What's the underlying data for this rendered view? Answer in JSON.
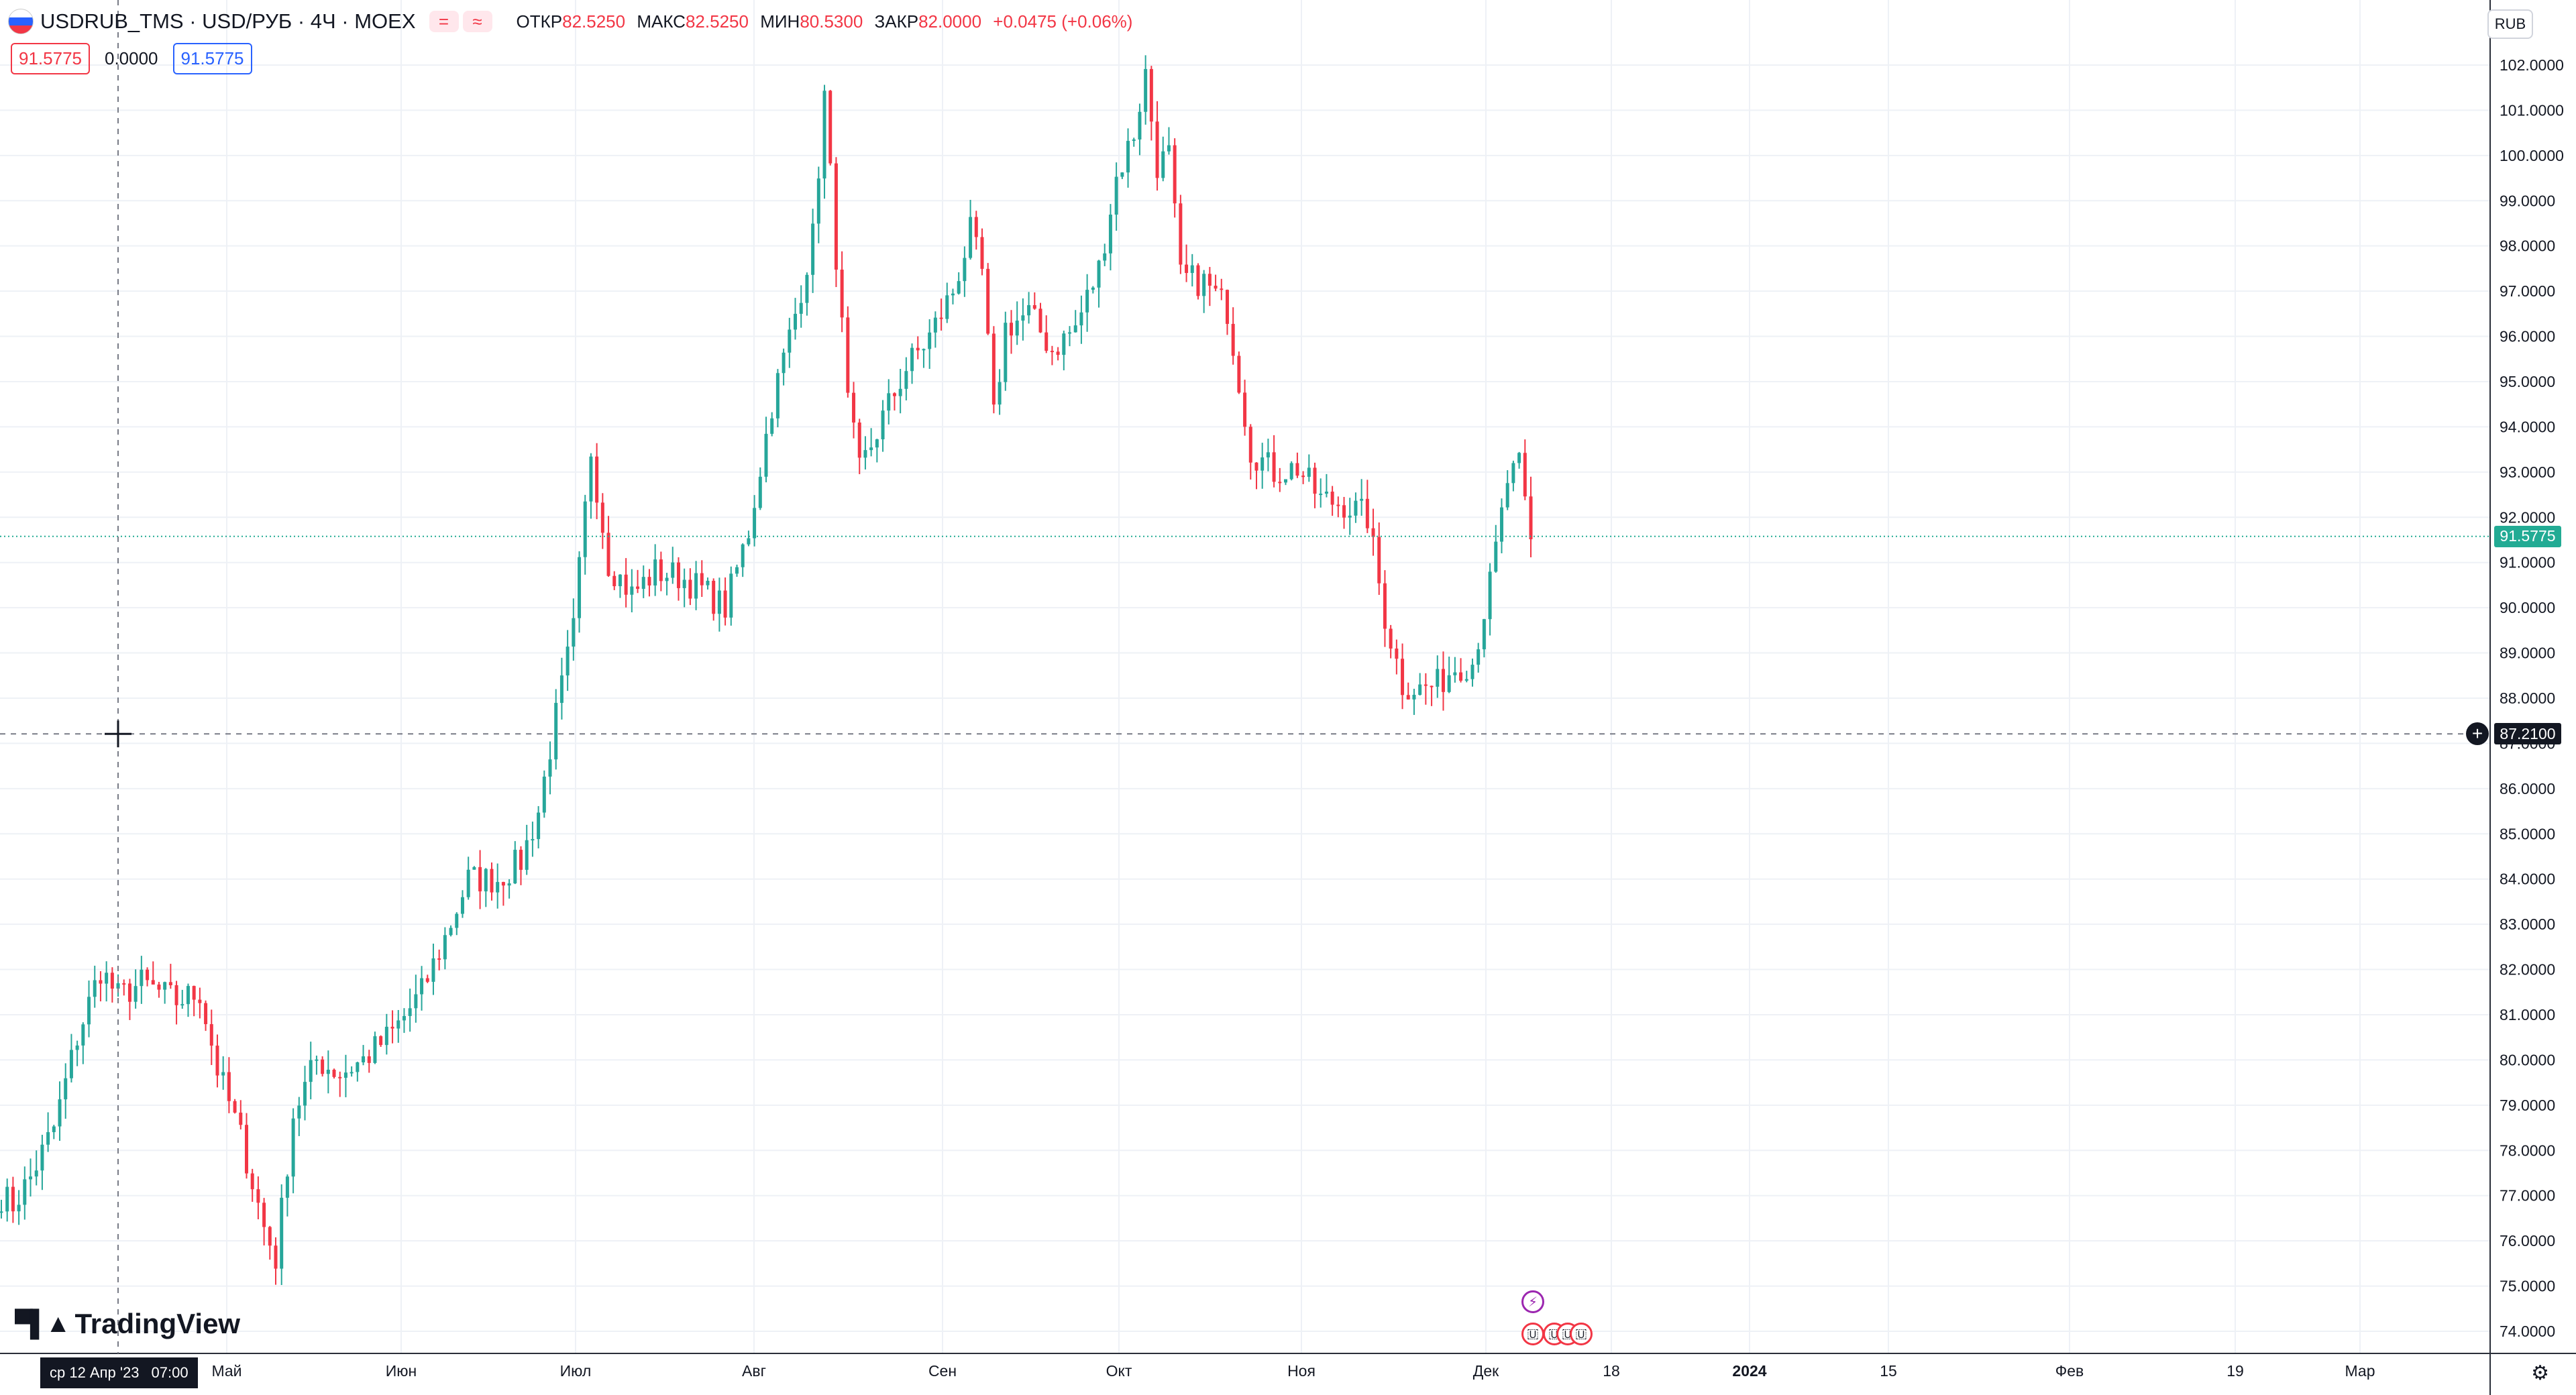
{
  "header": {
    "symbol_title": "USDRUB_TMS · USD/РУБ · 4Ч · MOEX",
    "pill1": "=",
    "pill2": "≈",
    "open_label": "ОТКР",
    "open_value": "82.5250",
    "high_label": "МАКС",
    "high_value": "82.5250",
    "low_label": "МИН",
    "low_value": "80.5300",
    "close_label": "ЗАКР",
    "close_value": "82.0000",
    "change": "+0.0475 (+0.06%)"
  },
  "trade_row": {
    "sell_price": "91.5775",
    "spread": "0.0000",
    "buy_price": "91.5775"
  },
  "currency_button": "RUB",
  "last_price_tag": "91.5775",
  "crosshair_price_tag": "87.2100",
  "crosshair_date": "ср 12 Апр '23",
  "crosshair_time": "07:00",
  "logo_text": "TradingView",
  "colors": {
    "up": "#26a69a",
    "down": "#f23645",
    "last_price_bg": "#22ab94",
    "crosshair_bg": "#131722",
    "grid": "#eef1f6",
    "event_us": "#f23645",
    "event_lightning": "#9c27b0"
  },
  "chart_data": {
    "type": "candlestick",
    "y_ticks": [
      "74.0000",
      "75.0000",
      "76.0000",
      "77.0000",
      "78.0000",
      "79.0000",
      "80.0000",
      "81.0000",
      "82.0000",
      "83.0000",
      "84.0000",
      "85.0000",
      "86.0000",
      "87.0000",
      "88.0000",
      "89.0000",
      "90.0000",
      "91.0000",
      "92.0000",
      "93.0000",
      "94.0000",
      "95.0000",
      "96.0000",
      "97.0000",
      "98.0000",
      "99.0000",
      "100.0000",
      "101.0000",
      "102.0000"
    ],
    "ylim": [
      73.7,
      102.8
    ],
    "x_ticks": [
      "Май",
      "Июн",
      "Июл",
      "Авг",
      "Сен",
      "Окт",
      "Ноя",
      "Дек",
      "18",
      "2024",
      "15",
      "Фев",
      "19",
      "Мар"
    ],
    "last_price": 91.5775,
    "crosshair_price": 87.21,
    "close_path": [
      {
        "x": 0,
        "y": 77.0
      },
      {
        "x": 2,
        "y": 76.8
      },
      {
        "x": 5,
        "y": 77.4
      },
      {
        "x": 9,
        "y": 78.5
      },
      {
        "x": 13,
        "y": 80.5
      },
      {
        "x": 17,
        "y": 82.0
      },
      {
        "x": 20,
        "y": 81.4
      },
      {
        "x": 24,
        "y": 81.7
      },
      {
        "x": 30,
        "y": 81.3
      },
      {
        "x": 34,
        "y": 81.5
      },
      {
        "x": 37,
        "y": 79.8
      },
      {
        "x": 41,
        "y": 78.3
      },
      {
        "x": 45,
        "y": 76.3
      },
      {
        "x": 47,
        "y": 75.6
      },
      {
        "x": 50,
        "y": 78.8
      },
      {
        "x": 54,
        "y": 80.0
      },
      {
        "x": 58,
        "y": 79.7
      },
      {
        "x": 62,
        "y": 80.0
      },
      {
        "x": 67,
        "y": 80.6
      },
      {
        "x": 72,
        "y": 81.5
      },
      {
        "x": 76,
        "y": 82.7
      },
      {
        "x": 80,
        "y": 84.0
      },
      {
        "x": 85,
        "y": 84.0
      },
      {
        "x": 89,
        "y": 84.4
      },
      {
        "x": 92,
        "y": 85.5
      },
      {
        "x": 95,
        "y": 87.6
      },
      {
        "x": 98,
        "y": 89.5
      },
      {
        "x": 101,
        "y": 93.5
      },
      {
        "x": 104,
        "y": 91.0
      },
      {
        "x": 108,
        "y": 90.3
      },
      {
        "x": 112,
        "y": 90.8
      },
      {
        "x": 116,
        "y": 90.7
      },
      {
        "x": 120,
        "y": 90.4
      },
      {
        "x": 124,
        "y": 90.0
      },
      {
        "x": 128,
        "y": 91.7
      },
      {
        "x": 132,
        "y": 94.5
      },
      {
        "x": 136,
        "y": 96.5
      },
      {
        "x": 139,
        "y": 98.2
      },
      {
        "x": 141,
        "y": 101.3
      },
      {
        "x": 143,
        "y": 97.8
      },
      {
        "x": 145,
        "y": 94.5
      },
      {
        "x": 147,
        "y": 93.0
      },
      {
        "x": 151,
        "y": 94.2
      },
      {
        "x": 155,
        "y": 95.3
      },
      {
        "x": 159,
        "y": 96.0
      },
      {
        "x": 163,
        "y": 97.0
      },
      {
        "x": 166,
        "y": 98.3
      },
      {
        "x": 168,
        "y": 97.4
      },
      {
        "x": 170,
        "y": 94.2
      },
      {
        "x": 172,
        "y": 96.2
      },
      {
        "x": 176,
        "y": 96.5
      },
      {
        "x": 180,
        "y": 95.7
      },
      {
        "x": 184,
        "y": 96.2
      },
      {
        "x": 188,
        "y": 97.5
      },
      {
        "x": 191,
        "y": 99.5
      },
      {
        "x": 194,
        "y": 100.5
      },
      {
        "x": 196,
        "y": 101.8
      },
      {
        "x": 198,
        "y": 99.8
      },
      {
        "x": 200,
        "y": 100.0
      },
      {
        "x": 202,
        "y": 97.3
      },
      {
        "x": 206,
        "y": 97.2
      },
      {
        "x": 210,
        "y": 96.6
      },
      {
        "x": 214,
        "y": 93.5
      },
      {
        "x": 218,
        "y": 93.0
      },
      {
        "x": 222,
        "y": 93.1
      },
      {
        "x": 226,
        "y": 92.4
      },
      {
        "x": 230,
        "y": 92.3
      },
      {
        "x": 234,
        "y": 92.0
      },
      {
        "x": 237,
        "y": 89.8
      },
      {
        "x": 240,
        "y": 88.3
      },
      {
        "x": 243,
        "y": 88.2
      },
      {
        "x": 246,
        "y": 88.3
      },
      {
        "x": 249,
        "y": 88.7
      },
      {
        "x": 252,
        "y": 88.8
      },
      {
        "x": 255,
        "y": 90.5
      },
      {
        "x": 258,
        "y": 92.8
      },
      {
        "x": 260,
        "y": 93.1
      },
      {
        "x": 262,
        "y": 91.4
      }
    ]
  }
}
